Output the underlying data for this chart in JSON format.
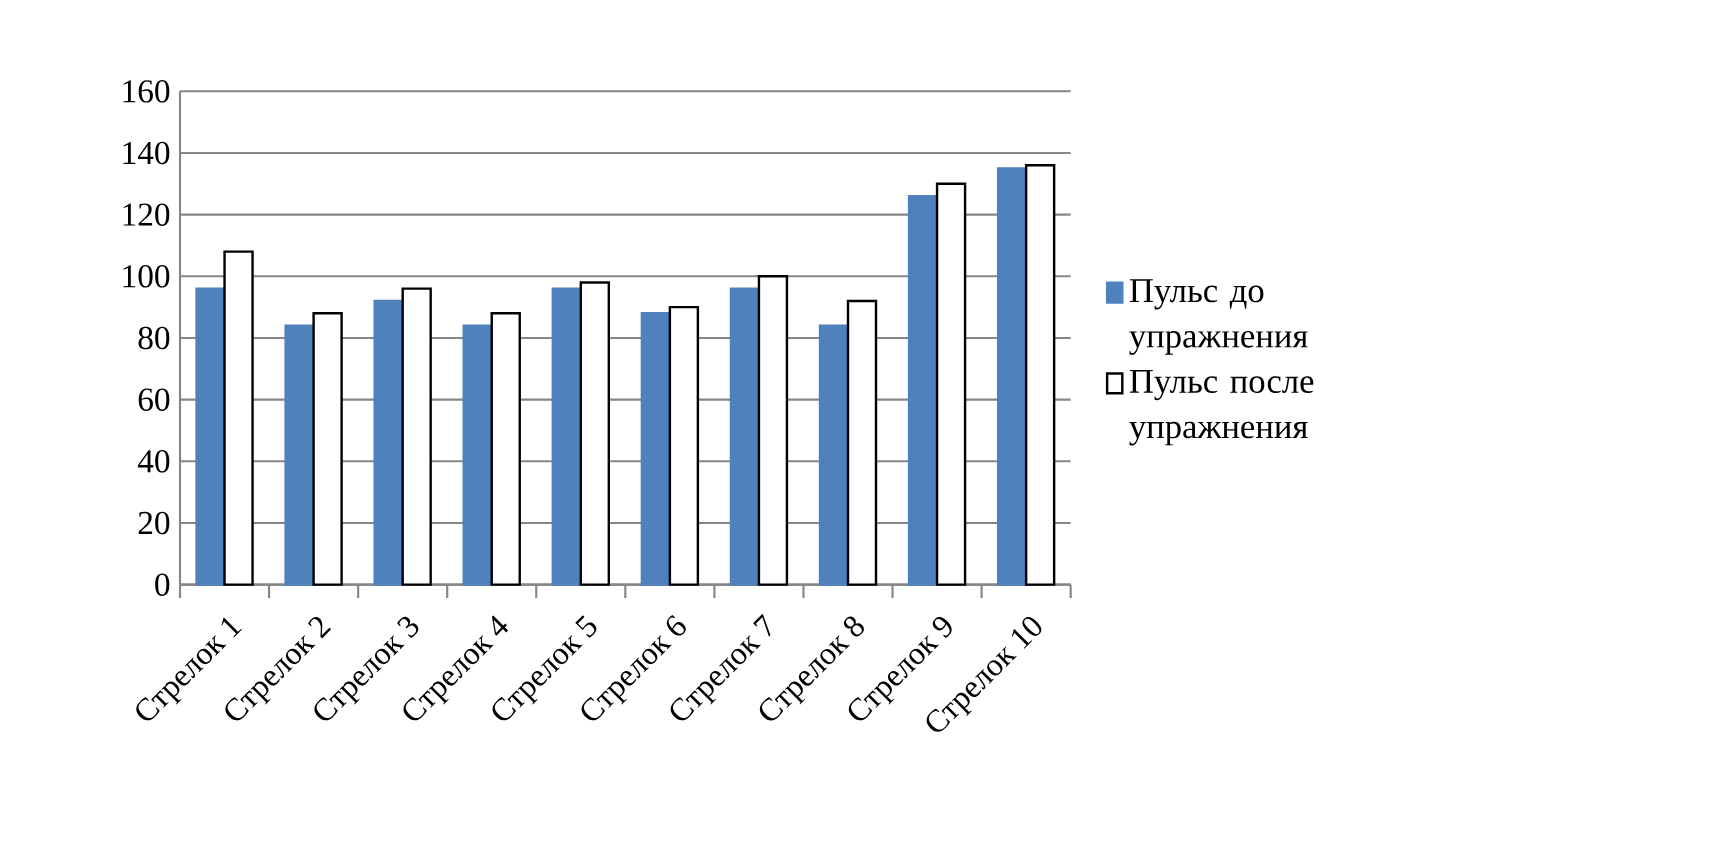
{
  "chart_data": {
    "type": "bar",
    "categories": [
      "Стрелок 1",
      "Стрелок 2",
      "Стрелок 3",
      "Стрелок 4",
      "Стрелок 5",
      "Стрелок 6",
      "Стрелок 7",
      "Стрелок 8",
      "Стрелок 9",
      "Стрелок 10"
    ],
    "series": [
      {
        "name": "Пульс до упражнения",
        "color": "#4f81bd",
        "values": [
          96,
          84,
          92,
          84,
          96,
          88,
          96,
          84,
          126,
          135
        ]
      },
      {
        "name": "Пульс после упражнения",
        "color": "#ffffff",
        "values": [
          108,
          88,
          96,
          88,
          98,
          90,
          100,
          92,
          130,
          136
        ]
      }
    ],
    "ylim": [
      0,
      160
    ],
    "yticks": [
      0,
      20,
      40,
      60,
      80,
      100,
      120,
      140,
      160
    ],
    "grid": "y",
    "legend": "right"
  }
}
